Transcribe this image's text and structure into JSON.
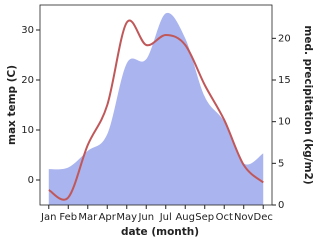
{
  "chart_data": {
    "type": "line",
    "x_label": "date (month)",
    "y_label": "max temp (C)",
    "y2_label": "med. precipitation (kg/m2)",
    "categories": [
      "Jan",
      "Feb",
      "Mar",
      "Apr",
      "May",
      "Jun",
      "Jul",
      "Aug",
      "Sep",
      "Oct",
      "Nov",
      "Dec"
    ],
    "series": [
      {
        "name": "med. precipitation",
        "type": "area",
        "axis": "y2",
        "color": "#aab4ee",
        "values": [
          4.3,
          4.5,
          6.5,
          8.5,
          17,
          17.5,
          23,
          20,
          13,
          10,
          5,
          6.2
        ]
      },
      {
        "name": "max temp",
        "type": "line",
        "axis": "y",
        "color": "#c0585a",
        "values": [
          -2,
          -3.5,
          7,
          15,
          31.5,
          27,
          29,
          27,
          19,
          12,
          3,
          -0.5
        ]
      }
    ],
    "ylim": [
      -5,
      35
    ],
    "yticks": [
      0,
      10,
      20,
      30
    ],
    "y2lim": [
      0,
      24
    ],
    "y2ticks": [
      0,
      5,
      10,
      15,
      20
    ]
  }
}
